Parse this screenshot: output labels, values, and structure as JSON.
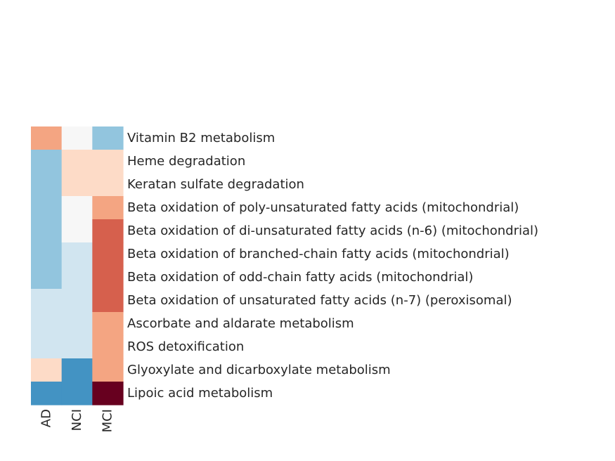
{
  "chart_data": {
    "type": "heatmap",
    "title": "",
    "xlabel": "",
    "ylabel": "",
    "columns": [
      "AD",
      "NCI",
      "MCI"
    ],
    "rows": [
      "Vitamin B2 metabolism",
      "Heme degradation",
      "Keratan sulfate degradation",
      "Beta oxidation of poly-unsaturated fatty acids (mitochondrial)",
      "Beta oxidation of di-unsaturated fatty acids (n-6) (mitochondrial)",
      "Beta oxidation of branched-chain fatty acids (mitochondrial)",
      "Beta oxidation of odd-chain fatty acids (mitochondrial)",
      "Beta oxidation of unsaturated fatty acids (n-7) (peroxisomal)",
      "Ascorbate and aldarate metabolism",
      "ROS detoxification",
      "Glyoxylate and dicarboxylate metabolism",
      "Lipoic acid metabolism"
    ],
    "values": [
      [
        0.5,
        0.0,
        -0.5
      ],
      [
        -0.5,
        0.2,
        0.2
      ],
      [
        -0.5,
        0.2,
        0.2
      ],
      [
        -0.5,
        0.0,
        0.5
      ],
      [
        -0.5,
        0.0,
        0.8
      ],
      [
        -0.5,
        -0.2,
        0.8
      ],
      [
        -0.5,
        -0.2,
        0.8
      ],
      [
        -0.2,
        -0.2,
        0.8
      ],
      [
        -0.2,
        -0.2,
        0.5
      ],
      [
        -0.2,
        -0.2,
        0.5
      ],
      [
        0.2,
        -0.75,
        0.5
      ],
      [
        -0.75,
        -0.75,
        1.0
      ]
    ],
    "color_scale": {
      "name": "RdBu_r",
      "stops": [
        {
          "value": -1.0,
          "color": "#2166ac"
        },
        {
          "value": -0.75,
          "color": "#4393c3"
        },
        {
          "value": -0.5,
          "color": "#92c5de"
        },
        {
          "value": -0.2,
          "color": "#d1e5f0"
        },
        {
          "value": 0.0,
          "color": "#f7f7f7"
        },
        {
          "value": 0.2,
          "color": "#fddbc7"
        },
        {
          "value": 0.5,
          "color": "#f4a582"
        },
        {
          "value": 0.8,
          "color": "#d6604d"
        },
        {
          "value": 1.0,
          "color": "#67001f"
        }
      ]
    },
    "grid": false,
    "legend": "none"
  }
}
